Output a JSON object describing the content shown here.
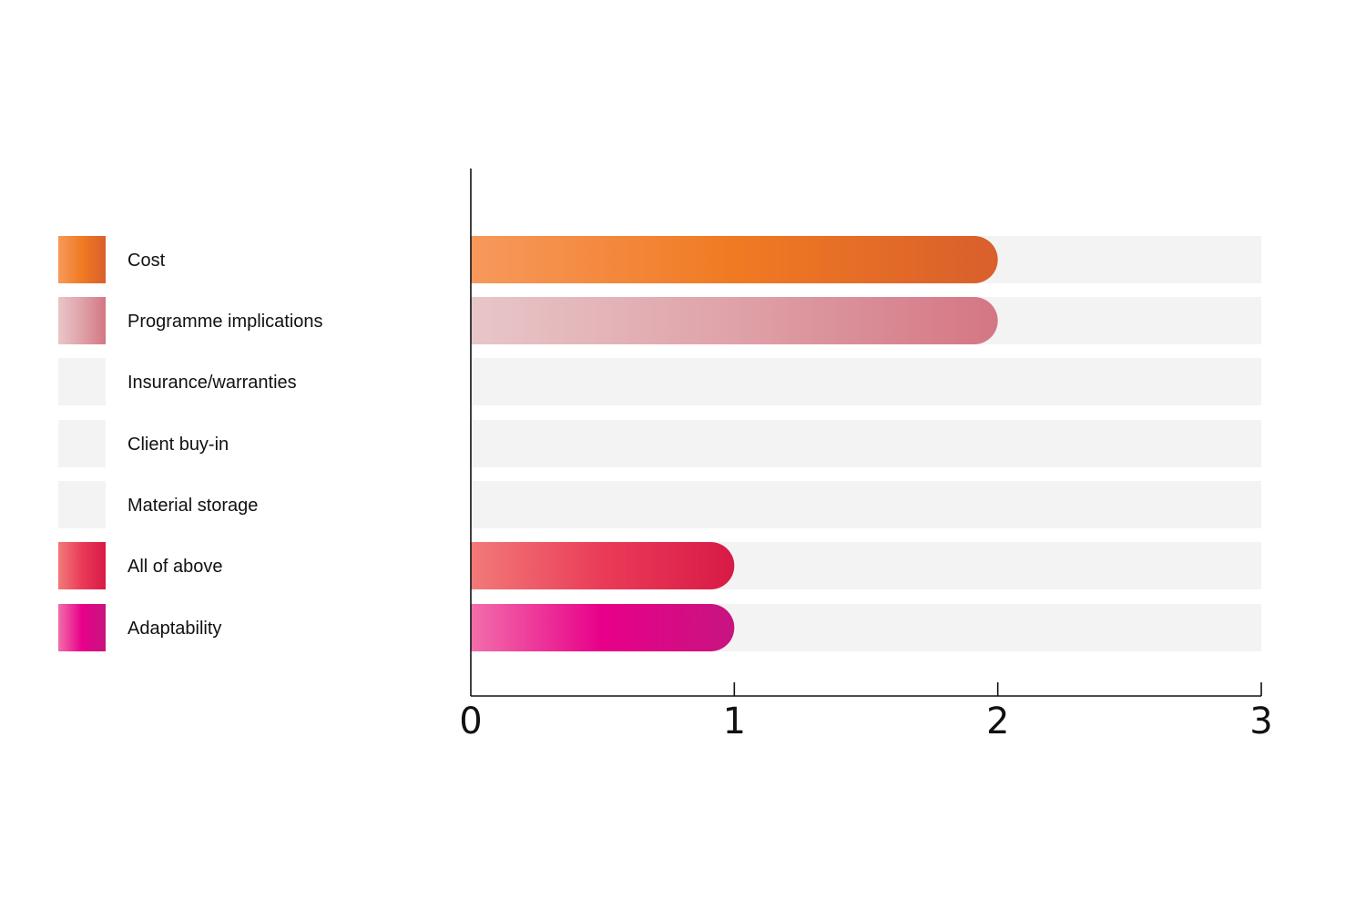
{
  "chart_data": {
    "type": "bar",
    "orientation": "horizontal",
    "title": "",
    "xlabel": "",
    "ylabel": "",
    "xlim": [
      0,
      3
    ],
    "ticks": [
      0,
      1,
      2,
      3
    ],
    "tick_labels": [
      "0",
      "1",
      "2",
      "3"
    ],
    "grid": false,
    "legend_position": "left",
    "categories": [
      "Cost",
      "Programme implications",
      "Insurance/warranties",
      "Client buy-in",
      "Material storage",
      "All of above",
      "Adaptability"
    ],
    "values": [
      2,
      2,
      0,
      0,
      0,
      1,
      1
    ],
    "colors": [
      [
        "#f7995c",
        "#f07a22",
        "#d95f2c"
      ],
      [
        "#e8c6c8",
        "#dfa2a8",
        "#d47683"
      ],
      [
        "#f3f3f3",
        "#f3f3f3",
        "#f3f3f3"
      ],
      [
        "#f3f3f3",
        "#f3f3f3",
        "#f3f3f3"
      ],
      [
        "#f3f3f3",
        "#f3f3f3",
        "#f3f3f3"
      ],
      [
        "#f27a78",
        "#ea3b59",
        "#d81a45"
      ],
      [
        "#f26eaa",
        "#e8008a",
        "#c7147f"
      ]
    ],
    "track_color": "#f3f3f3"
  }
}
